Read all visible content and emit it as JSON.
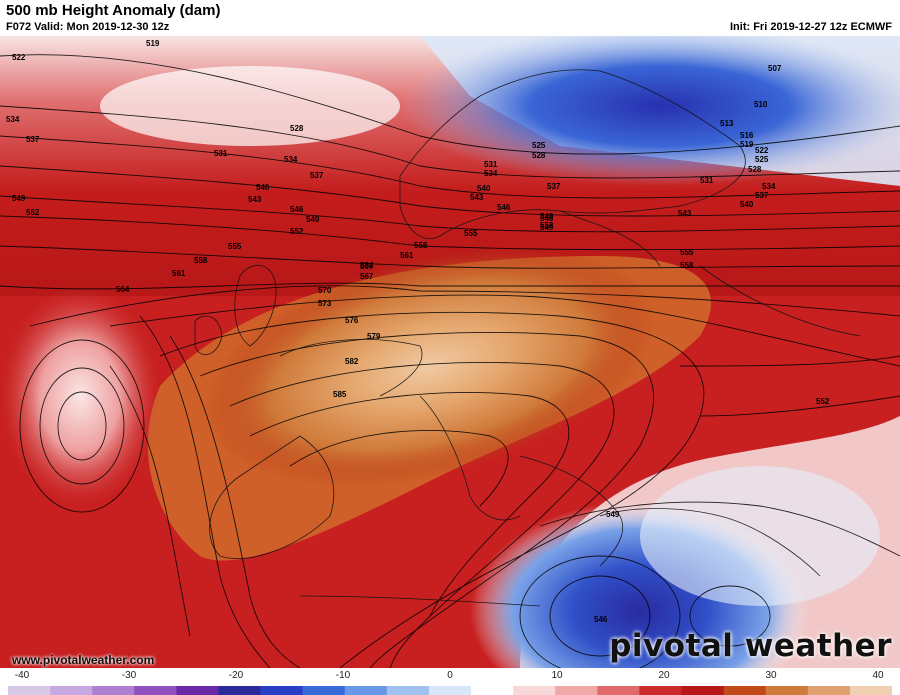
{
  "header": {
    "title": "500 mb Height Anomaly (dam)",
    "valid": "F072 Valid: Mon 2019-12-30 12z",
    "init": "Init: Fri 2019-12-27 12z ECMWF"
  },
  "footer": {
    "website": "www.pivotalweather.com",
    "logo": "pivotal weather"
  },
  "colorbar": {
    "ticks": [
      "-40",
      "-30",
      "-20",
      "-10",
      "0",
      "10",
      "20",
      "30",
      "40"
    ],
    "colors": [
      "#d8c8e8",
      "#c8a8e0",
      "#b080d0",
      "#9050c0",
      "#6a2aa8",
      "#2a2a9a",
      "#2840c8",
      "#3a6ad8",
      "#6a98e8",
      "#a0c0f0",
      "#d8e6fa",
      "#ffffff",
      "#f8d8d8",
      "#f0a8a8",
      "#e06a6a",
      "#cc2a2a",
      "#b81818",
      "#c04a1a",
      "#d07a3a",
      "#e0a070",
      "#f0d0b0"
    ]
  },
  "contours": [
    "519",
    "522",
    "528",
    "531",
    "534",
    "537",
    "540",
    "543",
    "546",
    "549",
    "552",
    "555",
    "558",
    "561",
    "564",
    "567",
    "570",
    "573",
    "576",
    "579",
    "582",
    "585",
    "507",
    "510",
    "513",
    "516",
    "519",
    "522",
    "525",
    "528",
    "531",
    "534",
    "537",
    "540",
    "543",
    "546",
    "549",
    "552",
    "555",
    "558",
    "525",
    "528",
    "531",
    "534",
    "537",
    "540",
    "543",
    "546",
    "549",
    "552",
    "555",
    "558",
    "561",
    "564",
    "567",
    "534",
    "537",
    "549",
    "546",
    "549",
    "552"
  ]
}
